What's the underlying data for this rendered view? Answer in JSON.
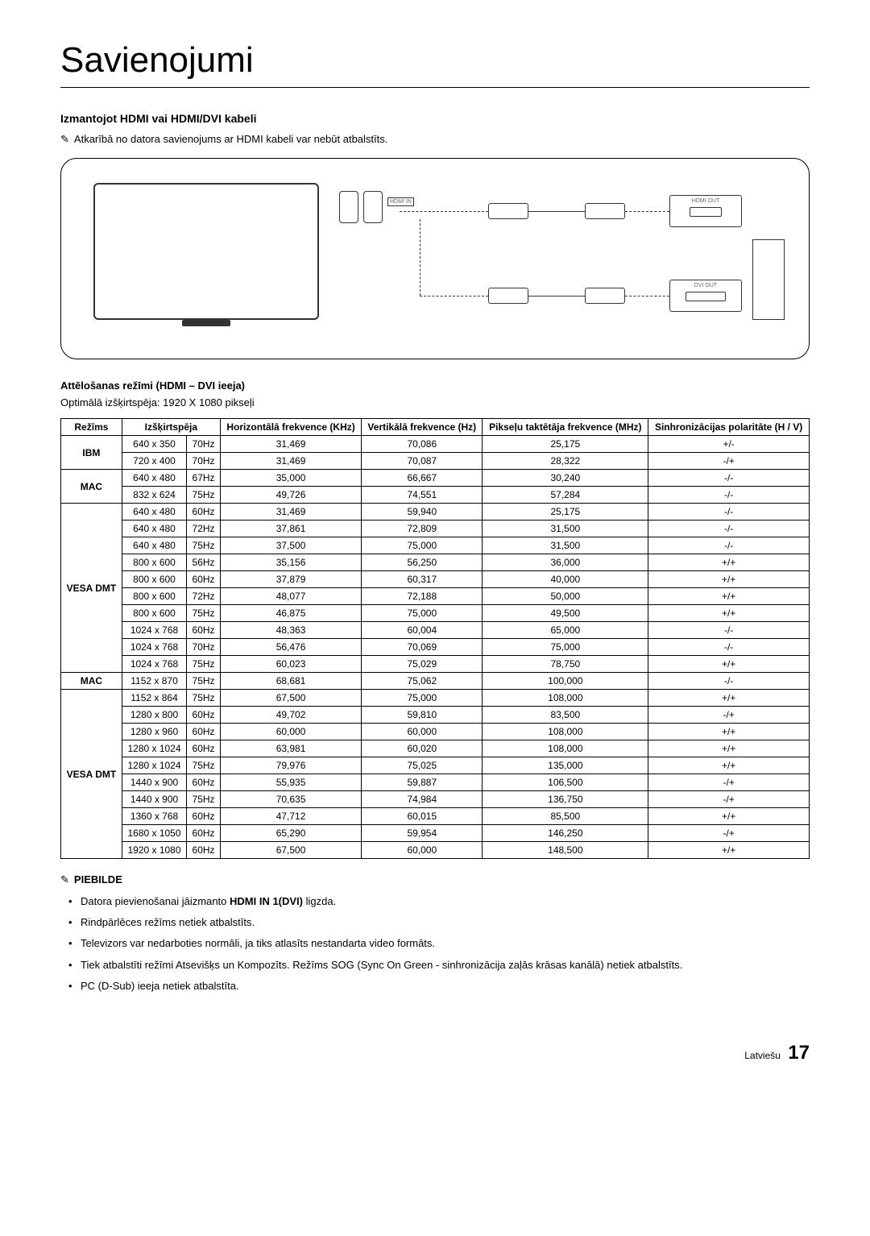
{
  "title": "Savienojumi",
  "section1": {
    "heading": "Izmantojot HDMI vai HDMI/DVI kabeli",
    "note": "Atkarībā no datora savienojums ar HDMI kabeli var nebūt atbalstīts."
  },
  "diagram": {
    "hdmi_in": "HDMI IN",
    "hdmi_out": "HDMI OUT",
    "dvi_out": "DVI OUT"
  },
  "section2": {
    "heading": "Attēlošanas režīmi (HDMI – DVI ieeja)",
    "optimal": "Optimālā izšķirtspēja: 1920 X 1080 pikseļi"
  },
  "table": {
    "headers": {
      "mode": "Režīms",
      "resolution": "Izšķirtspēja",
      "hfreq": "Horizontālā frekvence (KHz)",
      "vfreq": "Vertikālā frekvence (Hz)",
      "pfreq": "Pikseļu taktētāja frekvence (MHz)",
      "pol": "Sinhronizācijas polaritāte (H / V)"
    },
    "groups": [
      {
        "mode": "IBM",
        "rows": [
          {
            "res": "640 x 350",
            "hz": "70Hz",
            "h": "31,469",
            "v": "70,086",
            "p": "25,175",
            "pol": "+/-"
          },
          {
            "res": "720 x 400",
            "hz": "70Hz",
            "h": "31,469",
            "v": "70,087",
            "p": "28,322",
            "pol": "-/+"
          }
        ]
      },
      {
        "mode": "MAC",
        "rows": [
          {
            "res": "640 x 480",
            "hz": "67Hz",
            "h": "35,000",
            "v": "66,667",
            "p": "30,240",
            "pol": "-/-"
          },
          {
            "res": "832 x 624",
            "hz": "75Hz",
            "h": "49,726",
            "v": "74,551",
            "p": "57,284",
            "pol": "-/-"
          }
        ]
      },
      {
        "mode": "VESA DMT",
        "rows": [
          {
            "res": "640 x 480",
            "hz": "60Hz",
            "h": "31,469",
            "v": "59,940",
            "p": "25,175",
            "pol": "-/-"
          },
          {
            "res": "640 x 480",
            "hz": "72Hz",
            "h": "37,861",
            "v": "72,809",
            "p": "31,500",
            "pol": "-/-"
          },
          {
            "res": "640 x 480",
            "hz": "75Hz",
            "h": "37,500",
            "v": "75,000",
            "p": "31,500",
            "pol": "-/-"
          },
          {
            "res": "800 x 600",
            "hz": "56Hz",
            "h": "35,156",
            "v": "56,250",
            "p": "36,000",
            "pol": "+/+"
          },
          {
            "res": "800 x 600",
            "hz": "60Hz",
            "h": "37,879",
            "v": "60,317",
            "p": "40,000",
            "pol": "+/+"
          },
          {
            "res": "800 x 600",
            "hz": "72Hz",
            "h": "48,077",
            "v": "72,188",
            "p": "50,000",
            "pol": "+/+"
          },
          {
            "res": "800 x 600",
            "hz": "75Hz",
            "h": "46,875",
            "v": "75,000",
            "p": "49,500",
            "pol": "+/+"
          },
          {
            "res": "1024 x 768",
            "hz": "60Hz",
            "h": "48,363",
            "v": "60,004",
            "p": "65,000",
            "pol": "-/-"
          },
          {
            "res": "1024 x 768",
            "hz": "70Hz",
            "h": "56,476",
            "v": "70,069",
            "p": "75,000",
            "pol": "-/-"
          },
          {
            "res": "1024 x 768",
            "hz": "75Hz",
            "h": "60,023",
            "v": "75,029",
            "p": "78,750",
            "pol": "+/+"
          }
        ]
      },
      {
        "mode": "MAC",
        "rows": [
          {
            "res": "1152 x 870",
            "hz": "75Hz",
            "h": "68,681",
            "v": "75,062",
            "p": "100,000",
            "pol": "-/-"
          }
        ]
      },
      {
        "mode": "VESA DMT",
        "rows": [
          {
            "res": "1152 x 864",
            "hz": "75Hz",
            "h": "67,500",
            "v": "75,000",
            "p": "108,000",
            "pol": "+/+"
          },
          {
            "res": "1280 x 800",
            "hz": "60Hz",
            "h": "49,702",
            "v": "59,810",
            "p": "83,500",
            "pol": "-/+"
          },
          {
            "res": "1280 x 960",
            "hz": "60Hz",
            "h": "60,000",
            "v": "60,000",
            "p": "108,000",
            "pol": "+/+"
          },
          {
            "res": "1280 x 1024",
            "hz": "60Hz",
            "h": "63,981",
            "v": "60,020",
            "p": "108,000",
            "pol": "+/+"
          },
          {
            "res": "1280 x 1024",
            "hz": "75Hz",
            "h": "79,976",
            "v": "75,025",
            "p": "135,000",
            "pol": "+/+"
          },
          {
            "res": "1440 x 900",
            "hz": "60Hz",
            "h": "55,935",
            "v": "59,887",
            "p": "106,500",
            "pol": "-/+"
          },
          {
            "res": "1440 x 900",
            "hz": "75Hz",
            "h": "70,635",
            "v": "74,984",
            "p": "136,750",
            "pol": "-/+"
          },
          {
            "res": "1360 x 768",
            "hz": "60Hz",
            "h": "47,712",
            "v": "60,015",
            "p": "85,500",
            "pol": "+/+"
          },
          {
            "res": "1680 x 1050",
            "hz": "60Hz",
            "h": "65,290",
            "v": "59,954",
            "p": "146,250",
            "pol": "-/+"
          },
          {
            "res": "1920 x 1080",
            "hz": "60Hz",
            "h": "67,500",
            "v": "60,000",
            "p": "148,500",
            "pol": "+/+"
          }
        ]
      }
    ]
  },
  "notes": {
    "heading": "PIEBILDE",
    "items": [
      "Datora pievienošanai jāizmanto HDMI IN 1(DVI) ligzda.",
      "Rindpārlēces režīms netiek atbalstīts.",
      "Televizors var nedarboties normāli, ja tiks atlasīts nestandarta video formāts.",
      "Tiek atbalstīti režīmi Atsevišķs un Kompozīts. Režīms SOG (Sync On Green - sinhronizācija zaļās krāsas kanālā) netiek atbalstīts.",
      "PC (D-Sub) ieeja netiek atbalstīta."
    ],
    "bold_phrase": "HDMI IN 1(DVI)"
  },
  "footer": {
    "lang": "Latviešu",
    "page": "17"
  }
}
